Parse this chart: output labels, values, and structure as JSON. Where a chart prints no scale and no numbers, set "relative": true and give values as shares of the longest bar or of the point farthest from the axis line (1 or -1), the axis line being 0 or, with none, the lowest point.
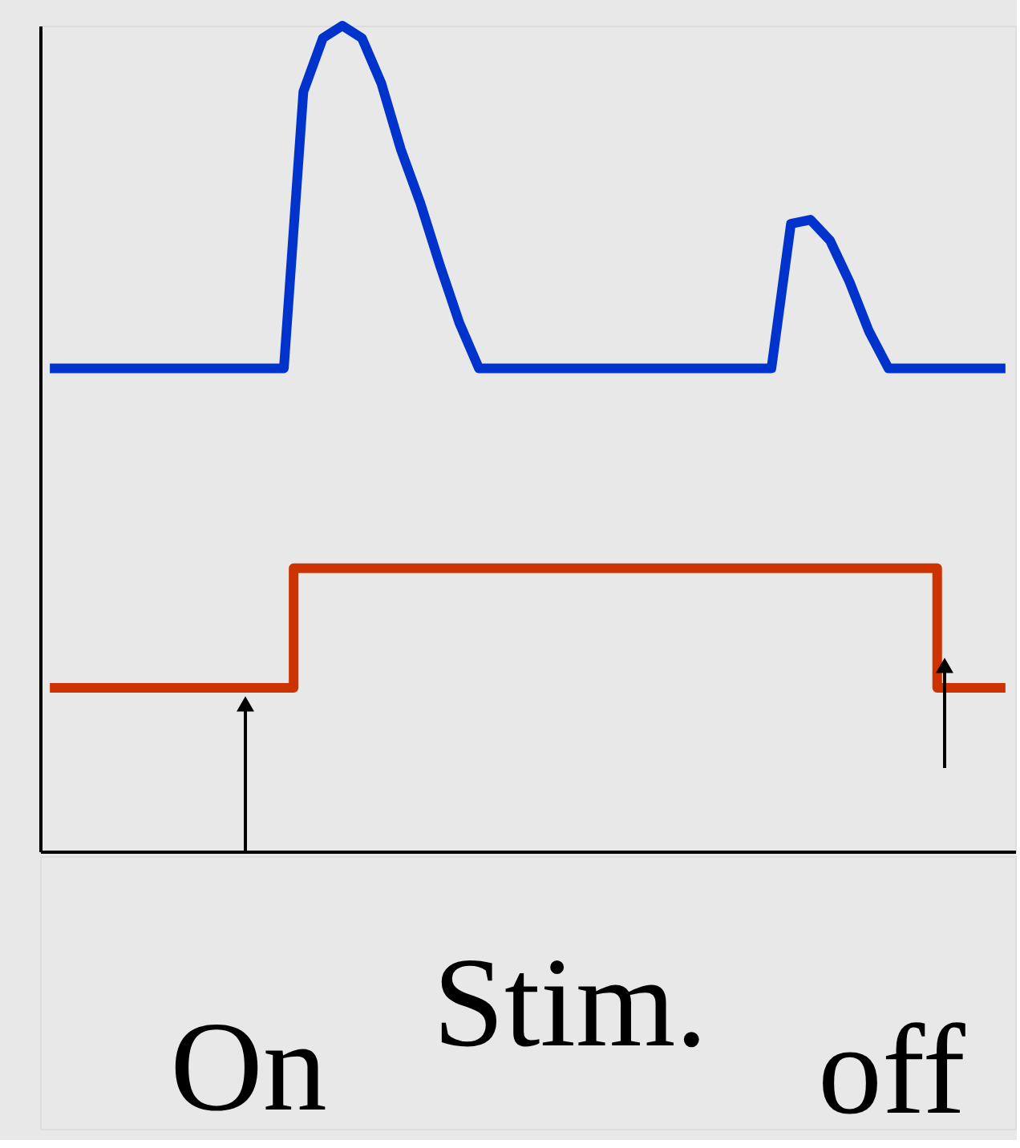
{
  "chart_data": {
    "type": "line",
    "relative": true,
    "grid": false,
    "tick_labels": false,
    "categories": [
      null,
      null,
      null,
      null,
      null,
      null,
      null,
      null,
      null,
      null,
      null,
      null,
      null,
      null,
      null,
      null,
      null,
      null,
      null,
      null,
      null,
      null,
      null,
      null,
      null,
      null,
      null,
      null,
      null,
      null,
      null,
      null,
      null,
      null,
      null,
      null,
      null,
      null,
      null,
      null,
      null,
      null,
      null,
      null,
      null,
      null,
      null,
      null,
      null,
      null
    ],
    "series": [
      {
        "color": "#0033cc",
        "values": [
          0.585,
          0.585,
          0.585,
          0.585,
          0.585,
          0.585,
          0.585,
          0.585,
          0.585,
          0.585,
          0.585,
          0.585,
          0.585,
          0.92,
          0.985,
          1.0,
          0.985,
          0.93,
          0.85,
          0.785,
          0.71,
          0.64,
          0.585,
          0.585,
          0.585,
          0.585,
          0.585,
          0.585,
          0.585,
          0.585,
          0.585,
          0.585,
          0.585,
          0.585,
          0.585,
          0.585,
          0.585,
          0.585,
          0.76,
          0.765,
          0.74,
          0.69,
          0.63,
          0.585,
          0.585,
          0.585,
          0.585,
          0.585,
          0.585,
          0.585
        ]
      },
      {
        "type": "step",
        "color": "#cc3300",
        "values": [
          0.198,
          0.198,
          0.198,
          0.198,
          0.198,
          0.198,
          0.198,
          0.198,
          0.198,
          0.198,
          0.198,
          0.198,
          0.198,
          0.343,
          0.343,
          0.343,
          0.343,
          0.343,
          0.343,
          0.343,
          0.343,
          0.343,
          0.343,
          0.343,
          0.343,
          0.343,
          0.343,
          0.343,
          0.343,
          0.343,
          0.343,
          0.343,
          0.343,
          0.343,
          0.343,
          0.343,
          0.343,
          0.343,
          0.343,
          0.343,
          0.343,
          0.343,
          0.343,
          0.343,
          0.343,
          0.343,
          0.198,
          0.198,
          0.198,
          0.198
        ]
      }
    ],
    "annotations": [
      "On",
      "Stim.",
      "off"
    ]
  }
}
